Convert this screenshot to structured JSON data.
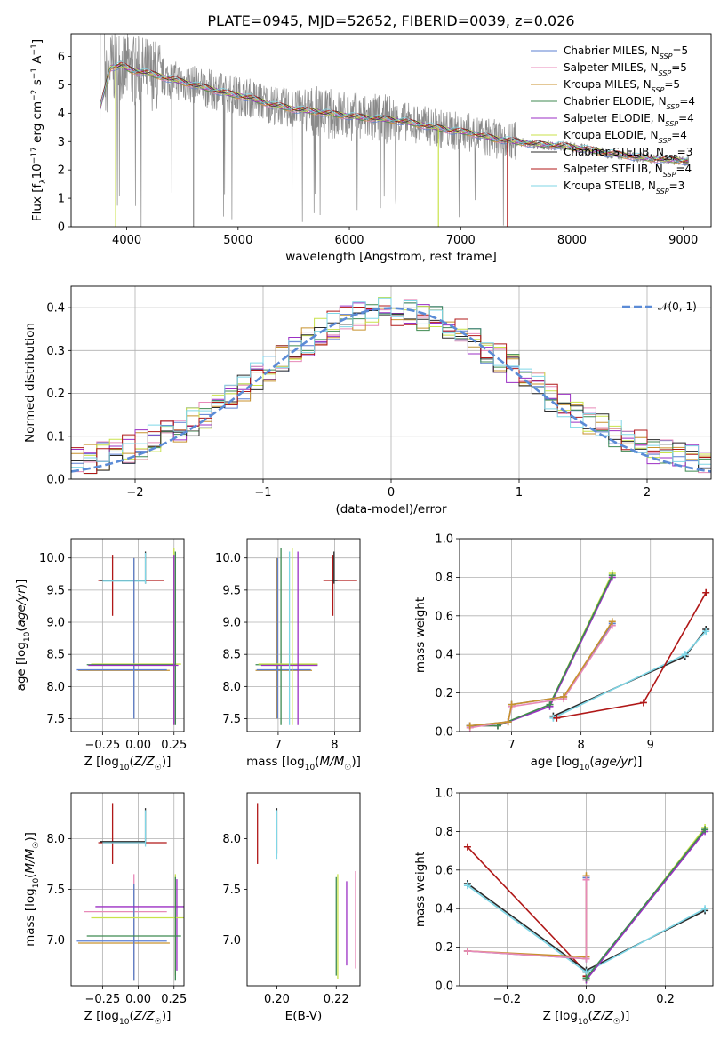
{
  "title": "PLATE=0945, MJD=52652, FIBERID=0039, z=0.026",
  "models": [
    {
      "label": "Chabrier MILES, N<sub>SSP</sub>=5",
      "text": "Chabrier MILES, N",
      "sub": "SSP",
      "tail": "=5",
      "color": "#5b7fd2"
    },
    {
      "label": "Salpeter MILES",
      "text": "Salpeter MILES, N",
      "sub": "SSP",
      "tail": "=5",
      "color": "#e889b8"
    },
    {
      "label": "Kroupa MILES",
      "text": "Kroupa MILES, N",
      "sub": "SSP",
      "tail": "=5",
      "color": "#c8922e"
    },
    {
      "label": "Chabrier ELODIE",
      "text": "Chabrier ELODIE, N",
      "sub": "SSP",
      "tail": "=4",
      "color": "#3f8a52"
    },
    {
      "label": "Salpeter ELODIE",
      "text": "Salpeter ELODIE, N",
      "sub": "SSP",
      "tail": "=4",
      "color": "#9b2fc4"
    },
    {
      "label": "Kroupa ELODIE",
      "text": "Kroupa ELODIE, N",
      "sub": "SSP",
      "tail": "=4",
      "color": "#c9e24a"
    },
    {
      "label": "Chabrier STELIB",
      "text": "Chabrier STELIB, N",
      "sub": "SSP",
      "tail": "=3",
      "color": "#2b2b2b"
    },
    {
      "label": "Salpeter STELIB",
      "text": "Salpeter STELIB, N",
      "sub": "SSP",
      "tail": "=4",
      "color": "#b01818"
    },
    {
      "label": "Kroupa STELIB",
      "text": "Kroupa STELIB, N",
      "sub": "SSP",
      "tail": "=3",
      "color": "#7fd6e6"
    }
  ],
  "chart_data": [
    {
      "type": "line",
      "name": "spectrum",
      "xlabel": "wavelength [Angstrom, rest frame]",
      "ylabel_parts": [
        "Flux [f",
        "λ",
        "10",
        "−17",
        " erg cm",
        "−2",
        " s",
        "−1",
        " A",
        "−1",
        "]"
      ],
      "xlim": [
        3500,
        9250
      ],
      "ylim": [
        0,
        6.8
      ],
      "xticks": [
        4000,
        5000,
        6000,
        7000,
        8000,
        9000
      ],
      "yticks": [
        0,
        1,
        2,
        3,
        4,
        5,
        6
      ],
      "continuum": {
        "x": [
          3760,
          3850,
          3950,
          4050,
          4150,
          4300,
          4500,
          4700,
          4900,
          5100,
          5300,
          5500,
          5700,
          5900,
          6100,
          6300,
          6500,
          6700,
          6900,
          7100,
          7300,
          7500,
          7700,
          7900,
          8100,
          8300,
          8500,
          8700,
          8900,
          9050
        ],
        "y": [
          4.2,
          5.6,
          5.7,
          5.5,
          5.45,
          5.3,
          5.1,
          4.9,
          4.7,
          4.55,
          4.3,
          4.15,
          4.05,
          3.95,
          3.85,
          3.8,
          3.7,
          3.55,
          3.4,
          3.3,
          3.1,
          3.0,
          2.9,
          2.85,
          2.75,
          2.6,
          2.5,
          2.4,
          2.35,
          2.3
        ]
      },
      "dips": [
        {
          "x": 3900,
          "y": 0.0,
          "series": "Kroupa ELODIE"
        },
        {
          "x": 4600,
          "y": 0.0,
          "series": "data"
        },
        {
          "x": 6800,
          "y": 0.0,
          "series": "Kroupa ELODIE"
        },
        {
          "x": 7420,
          "y": 0.0,
          "series": "Salpeter STELIB"
        }
      ],
      "legend": "top-right"
    },
    {
      "type": "line",
      "name": "residuals",
      "xlabel": "(data-model)/error",
      "ylabel": "Normed distribution",
      "xlim": [
        -2.5,
        2.5
      ],
      "ylim": [
        0,
        0.45
      ],
      "xticks": [
        -2,
        -1,
        0,
        1,
        2
      ],
      "yticks": [
        0.0,
        0.1,
        0.2,
        0.3,
        0.4
      ],
      "gaussian_label": "𝒩(0, 1)",
      "grid": true,
      "legend": "top-right"
    },
    {
      "type": "scatter",
      "name": "age-vs-Z",
      "xlabel": "Z [log10(Z/Z☉)]",
      "ylabel": "age [log10(age/yr)]",
      "xlim": [
        -0.47,
        0.32
      ],
      "ylim": [
        7.3,
        10.3
      ],
      "xticks": [
        -0.25,
        0.0,
        0.25
      ],
      "xticklabels": [
        "−0.25",
        "0.00",
        "0.25"
      ],
      "yticks": [
        7.5,
        8.0,
        8.5,
        9.0,
        9.5,
        10.0
      ],
      "grid": true
    },
    {
      "type": "scatter",
      "name": "age-vs-mass",
      "xlabel": "mass [log10(M/M☉)]",
      "ylabel": "",
      "xlim": [
        6.45,
        8.45
      ],
      "ylim": [
        7.3,
        10.3
      ],
      "xticks": [
        7,
        8
      ],
      "yticks": [
        7.5,
        8.0,
        8.5,
        9.0,
        9.5,
        10.0
      ],
      "grid": true
    },
    {
      "type": "line",
      "name": "massweight-vs-age",
      "xlabel": "age [log10(age/yr)]",
      "ylabel": "mass weight",
      "xlim": [
        6.25,
        9.9
      ],
      "ylim": [
        0,
        1.0
      ],
      "xticks": [
        7,
        8,
        9
      ],
      "yticks": [
        0.0,
        0.2,
        0.4,
        0.6,
        0.8,
        1.0
      ],
      "grid": true,
      "series": [
        {
          "name": "Kroupa ELODIE",
          "x": [
            6.4,
            6.8,
            7.55,
            8.45
          ],
          "y": [
            0.03,
            0.03,
            0.14,
            0.82
          ]
        },
        {
          "name": "Salpeter ELODIE",
          "x": [
            6.4,
            6.8,
            7.55,
            8.45
          ],
          "y": [
            0.03,
            0.03,
            0.13,
            0.8
          ]
        },
        {
          "name": "Chabrier ELODIE",
          "x": [
            6.4,
            6.8,
            7.55,
            8.45
          ],
          "y": [
            0.03,
            0.03,
            0.14,
            0.81
          ]
        },
        {
          "name": "Chabrier MILES",
          "x": [
            6.4,
            6.95,
            7.0,
            7.75,
            8.45
          ],
          "y": [
            0.03,
            0.05,
            0.14,
            0.18,
            0.56
          ]
        },
        {
          "name": "Salpeter MILES",
          "x": [
            6.4,
            6.95,
            7.0,
            7.75,
            8.45
          ],
          "y": [
            0.02,
            0.05,
            0.13,
            0.17,
            0.55
          ]
        },
        {
          "name": "Kroupa MILES",
          "x": [
            6.4,
            6.95,
            7.0,
            7.75,
            8.45
          ],
          "y": [
            0.03,
            0.05,
            0.14,
            0.18,
            0.57
          ]
        },
        {
          "name": "Chabrier STELIB",
          "x": [
            7.6,
            9.5,
            9.8
          ],
          "y": [
            0.08,
            0.39,
            0.53
          ]
        },
        {
          "name": "Kroupa STELIB",
          "x": [
            7.6,
            9.5,
            9.8
          ],
          "y": [
            0.07,
            0.4,
            0.52
          ]
        },
        {
          "name": "Salpeter STELIB",
          "x": [
            7.65,
            8.9,
            9.8
          ],
          "y": [
            0.07,
            0.15,
            0.72
          ]
        }
      ]
    },
    {
      "type": "scatter",
      "name": "mass-vs-Z",
      "xlabel": "Z [log10(Z/Z☉)]",
      "ylabel": "mass [log10(M/M☉)]",
      "xlim": [
        -0.47,
        0.32
      ],
      "ylim": [
        6.55,
        8.45
      ],
      "xticks": [
        -0.25,
        0.0,
        0.25
      ],
      "xticklabels": [
        "−0.25",
        "0.00",
        "0.25"
      ],
      "yticks": [
        7.0,
        7.5,
        8.0
      ],
      "grid": true
    },
    {
      "type": "scatter",
      "name": "mass-vs-EBV",
      "xlabel": "E(B-V)",
      "ylabel": "",
      "xlim": [
        0.19,
        0.228
      ],
      "ylim": [
        6.55,
        8.45
      ],
      "xticks": [
        0.2,
        0.22
      ],
      "xticklabels": [
        "0.20",
        "0.22"
      ],
      "yticks": [
        7.0,
        7.5,
        8.0
      ],
      "grid": false
    },
    {
      "type": "line",
      "name": "massweight-vs-Z",
      "xlabel": "Z [log10(Z/Z☉)]",
      "ylabel": "mass weight",
      "xlim": [
        -0.32,
        0.32
      ],
      "ylim": [
        0,
        1.0
      ],
      "xticks": [
        -0.2,
        0.0,
        0.2
      ],
      "xticklabels": [
        "−0.2",
        "0.0",
        "0.2"
      ],
      "yticks": [
        0.0,
        0.2,
        0.4,
        0.6,
        0.8,
        1.0
      ],
      "grid": true,
      "series": [
        {
          "name": "Salpeter STELIB",
          "x": [
            -0.3,
            0.0,
            0.0
          ],
          "y": [
            0.72,
            0.07,
            0.05
          ]
        },
        {
          "name": "Chabrier STELIB",
          "x": [
            -0.3,
            0.0,
            0.3
          ],
          "y": [
            0.53,
            0.08,
            0.39
          ]
        },
        {
          "name": "Kroupa STELIB",
          "x": [
            -0.3,
            0.0,
            0.3
          ],
          "y": [
            0.52,
            0.07,
            0.4
          ]
        },
        {
          "name": "Chabrier MILES",
          "x": [
            -0.3,
            0.0,
            0.0
          ],
          "y": [
            0.18,
            0.14,
            0.56
          ]
        },
        {
          "name": "Kroupa MILES",
          "x": [
            -0.3,
            0.0,
            0.0
          ],
          "y": [
            0.18,
            0.15,
            0.57
          ]
        },
        {
          "name": "Salpeter MILES",
          "x": [
            -0.3,
            0.0,
            0.0
          ],
          "y": [
            0.18,
            0.14,
            0.55
          ]
        },
        {
          "name": "Kroupa ELODIE",
          "x": [
            0.0,
            0.3
          ],
          "y": [
            0.03,
            0.82
          ]
        },
        {
          "name": "Salpeter ELODIE",
          "x": [
            0.0,
            0.3
          ],
          "y": [
            0.03,
            0.8
          ]
        },
        {
          "name": "Chabrier ELODIE",
          "x": [
            0.0,
            0.3
          ],
          "y": [
            0.04,
            0.81
          ]
        }
      ]
    }
  ]
}
